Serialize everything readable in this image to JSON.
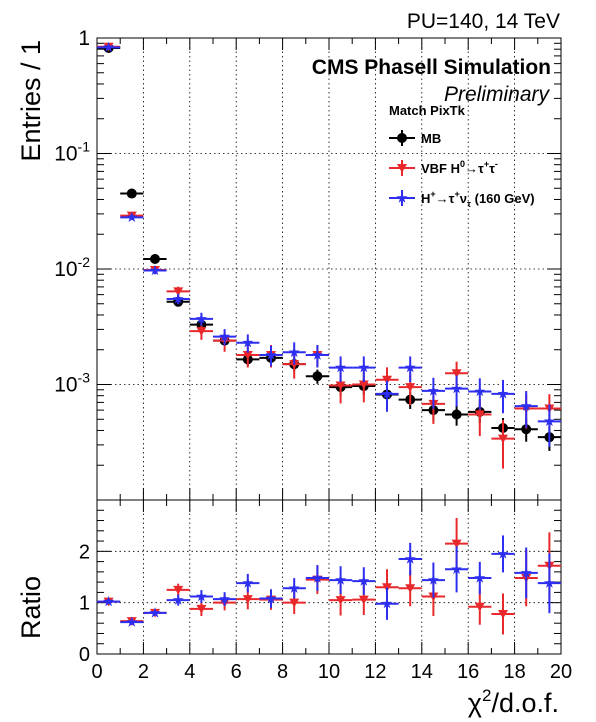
{
  "header": {
    "top_right": "PU=140, 14 TeV",
    "experiment": "CMS Phasell Simulation",
    "status": "Preliminary"
  },
  "chart_data": [
    {
      "type": "scatter",
      "panel": "main",
      "y_scale": "log",
      "ylabel": "Entries / 1",
      "xlim": [
        0,
        20
      ],
      "ylim": [
        0.0001,
        1
      ],
      "yticks": [
        {
          "value": 1,
          "label": "1"
        },
        {
          "value": 0.1,
          "label": "10",
          "sup": "-1"
        },
        {
          "value": 0.01,
          "label": "10",
          "sup": "-2"
        },
        {
          "value": 0.001,
          "label": "10",
          "sup": "-3"
        }
      ],
      "grid": true,
      "legend": {
        "title": "Match PixTk",
        "placement": "top-right",
        "entries": [
          {
            "series": "mb",
            "parts": [
              {
                "t": "MB"
              }
            ]
          },
          {
            "series": "vbf",
            "parts": [
              {
                "t": "VBF H"
              },
              {
                "t": "0",
                "sup": true
              },
              {
                "t": "→τ"
              },
              {
                "t": "+",
                "sup": true
              },
              {
                "t": "τ"
              },
              {
                "t": "-",
                "sup": true
              }
            ]
          },
          {
            "series": "hplus",
            "parts": [
              {
                "t": "H"
              },
              {
                "t": "+",
                "sup": true
              },
              {
                "t": "→τ"
              },
              {
                "t": "+",
                "sup": true
              },
              {
                "t": "ν"
              },
              {
                "t": "τ",
                "sub": true
              },
              {
                "t": " (160 GeV)"
              }
            ]
          }
        ]
      },
      "x": [
        0.5,
        1.5,
        2.5,
        3.5,
        4.5,
        5.5,
        6.5,
        7.5,
        8.5,
        9.5,
        10.5,
        11.5,
        12.5,
        13.5,
        14.5,
        15.5,
        16.5,
        17.5,
        18.5,
        19.5
      ],
      "series": [
        {
          "id": "mb",
          "color": "#000000",
          "marker": "circle",
          "values": [
            0.82,
            0.045,
            0.0122,
            0.0052,
            0.0033,
            0.0024,
            0.00165,
            0.0017,
            0.0015,
            0.00118,
            0.00095,
            0.00097,
            0.00082,
            0.00074,
            0.0006,
            0.00055,
            0.00058,
            0.00042,
            0.00041,
            0.00035
          ],
          "err_rel": [
            0.01,
            0.03,
            0.05,
            0.07,
            0.09,
            0.1,
            0.12,
            0.12,
            0.13,
            0.14,
            0.16,
            0.16,
            0.17,
            0.17,
            0.19,
            0.2,
            0.2,
            0.22,
            0.22,
            0.24
          ]
        },
        {
          "id": "vbf",
          "color": "#e8282b",
          "marker": "triangle-down",
          "values": [
            0.84,
            0.029,
            0.0098,
            0.0064,
            0.0029,
            0.0024,
            0.0018,
            0.0018,
            0.0015,
            0.0018,
            0.00098,
            0.001,
            0.0011,
            0.00095,
            0.00068,
            0.00125,
            0.00055,
            0.00034,
            0.00062,
            0.00062
          ],
          "err_rel": [
            0.01,
            0.04,
            0.07,
            0.1,
            0.16,
            0.2,
            0.22,
            0.22,
            0.25,
            0.22,
            0.3,
            0.3,
            0.28,
            0.3,
            0.33,
            0.26,
            0.35,
            0.45,
            0.33,
            0.33
          ]
        },
        {
          "id": "hplus",
          "color": "#2d2ef0",
          "marker": "star",
          "values": [
            0.83,
            0.028,
            0.0097,
            0.0055,
            0.0037,
            0.0026,
            0.0023,
            0.0018,
            0.0019,
            0.0018,
            0.0014,
            0.0014,
            0.00083,
            0.0014,
            0.00088,
            0.00092,
            0.00087,
            0.00083,
            0.00065,
            0.00048
          ],
          "err_rel": [
            0.01,
            0.04,
            0.07,
            0.1,
            0.13,
            0.16,
            0.18,
            0.2,
            0.22,
            0.22,
            0.25,
            0.25,
            0.3,
            0.25,
            0.3,
            0.3,
            0.3,
            0.32,
            0.35,
            0.4
          ]
        }
      ]
    },
    {
      "type": "scatter",
      "panel": "ratio",
      "ylabel": "Ratio",
      "xlabel": "χ",
      "xlabel_sup": "2",
      "xlabel_rest": "/d.o.f.",
      "xlim": [
        0,
        20
      ],
      "ylim": [
        0,
        3
      ],
      "yticks": [
        0,
        1,
        2
      ],
      "xticks": [
        0,
        2,
        4,
        6,
        8,
        10,
        12,
        14,
        16,
        18,
        20
      ],
      "grid": true,
      "x": [
        0.5,
        1.5,
        2.5,
        3.5,
        4.5,
        5.5,
        6.5,
        7.5,
        8.5,
        9.5,
        10.5,
        11.5,
        12.5,
        13.5,
        14.5,
        15.5,
        16.5,
        17.5,
        18.5,
        19.5
      ],
      "series": [
        {
          "id": "vbf",
          "color": "#e8282b",
          "marker": "triangle-down",
          "values": [
            1.02,
            0.64,
            0.8,
            1.25,
            0.88,
            1.0,
            1.07,
            1.06,
            1.0,
            1.45,
            1.05,
            1.06,
            1.3,
            1.28,
            1.12,
            2.15,
            0.92,
            0.78,
            1.48,
            1.72
          ],
          "err": [
            0.02,
            0.05,
            0.06,
            0.12,
            0.14,
            0.15,
            0.2,
            0.2,
            0.22,
            0.28,
            0.3,
            0.3,
            0.35,
            0.35,
            0.38,
            0.5,
            0.35,
            0.4,
            0.55,
            0.65
          ]
        },
        {
          "id": "hplus",
          "color": "#2d2ef0",
          "marker": "star",
          "values": [
            1.02,
            0.62,
            0.8,
            1.05,
            1.12,
            1.07,
            1.38,
            1.08,
            1.28,
            1.48,
            1.44,
            1.42,
            0.98,
            1.85,
            1.44,
            1.65,
            1.48,
            1.95,
            1.58,
            1.38
          ]
        }
      ]
    }
  ]
}
